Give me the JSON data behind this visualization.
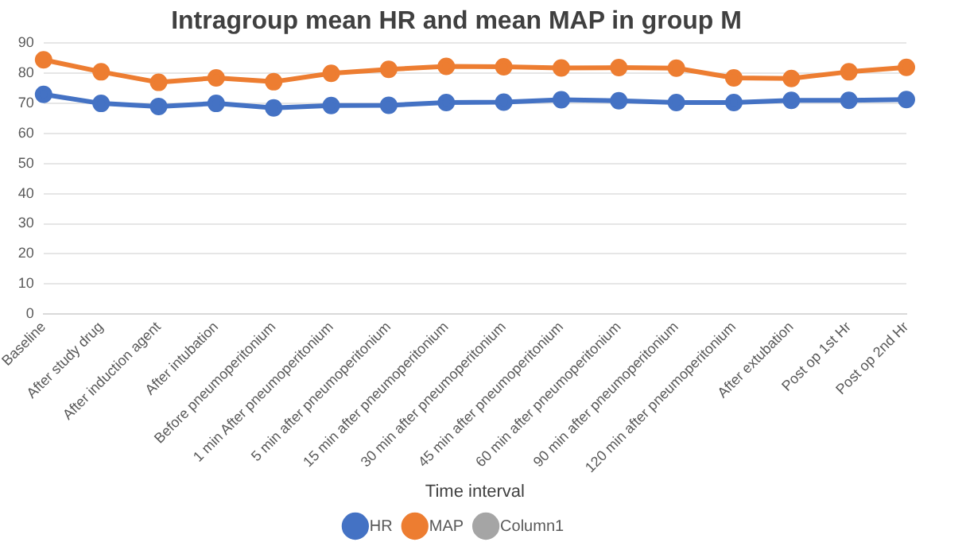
{
  "chart_data": {
    "type": "line",
    "title": "Intragroup mean HR and mean MAP in group M",
    "xlabel": "Time interval",
    "categories": [
      "Baseline",
      "After study drug",
      "After induction agent",
      "After intubation",
      "Before pneumoperitonium",
      "1 min After pneumoperitonium",
      "5 min after pneumoperitonium",
      "15 min after pneumoperitonium",
      "30 min after pneumoperitonium",
      "45 min after pneumoperitonium",
      "60 min after pneumoperitonium",
      "90 min after pneumoperitonium",
      "120 min after pneumoperitonium",
      "After extubation",
      "Post op 1st Hr",
      "Post op 2nd Hr"
    ],
    "series": [
      {
        "name": "HR",
        "color": "#4472c4",
        "values": [
          73,
          70,
          69,
          70,
          68.5,
          69.3,
          69.4,
          70.3,
          70.4,
          71.2,
          70.9,
          70.3,
          70.3,
          71,
          71,
          71.3
        ]
      },
      {
        "name": "MAP",
        "color": "#ed7d31",
        "values": [
          84.5,
          80.5,
          77,
          78.5,
          77.2,
          80,
          81.3,
          82.3,
          82.2,
          81.8,
          81.9,
          81.7,
          78.5,
          78.3,
          80.5,
          82
        ]
      },
      {
        "name": "Column1",
        "color": "#a5a5a5",
        "values": [
          null,
          null,
          null,
          null,
          null,
          null,
          null,
          null,
          null,
          null,
          null,
          null,
          null,
          null,
          null,
          null
        ]
      }
    ],
    "ylim": [
      0,
      90
    ],
    "yticks": [
      0,
      10,
      20,
      30,
      40,
      50,
      60,
      70,
      80,
      90
    ],
    "grid": "y",
    "legend": "bottom",
    "marker": "circle",
    "line_style": "solid"
  }
}
